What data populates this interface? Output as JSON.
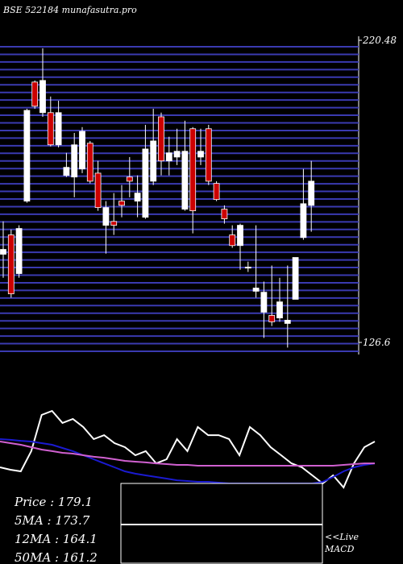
{
  "chart_data": [
    {
      "type": "candlestick",
      "title": "BSE 522184  munafasutra.pro",
      "ylim": [
        126.6,
        220.48
      ],
      "yticks": [
        126.6,
        220.48
      ],
      "up_color": "#ffffff",
      "down_color": "#cc0000",
      "grid_color": "#3a3ab0",
      "open": [
        154.0,
        160.0,
        148.0,
        170.5,
        207.5,
        198.0,
        198.0,
        188.0,
        178.5,
        178.0,
        180.5,
        188.5,
        179.2,
        163.0,
        164.2,
        170.5,
        178.0,
        170.5,
        165.5,
        176.7,
        196.7,
        183.0,
        184.2,
        168.0,
        193.0,
        184.2,
        193.0,
        176.0,
        168.0,
        160.0,
        156.7,
        149.7,
        142.5,
        136.0,
        135.0,
        134.2,
        132.5,
        140.0,
        159.2,
        169.2
      ],
      "high": [
        164.2,
        161.7,
        163.0,
        199.2,
        208.0,
        218.0,
        203.0,
        201.7,
        185.5,
        191.7,
        193.5,
        189.2,
        183.0,
        170.5,
        173.0,
        175.5,
        184.2,
        178.5,
        194.2,
        199.2,
        198.0,
        190.5,
        193.0,
        195.5,
        193.5,
        193.0,
        194.2,
        176.7,
        169.2,
        163.0,
        163.5,
        151.7,
        163.0,
        145.5,
        150.5,
        146.7,
        150.5,
        153.0,
        180.5,
        183.0
      ],
      "low": [
        146.7,
        140.5,
        146.7,
        170.0,
        199.2,
        196.7,
        187.5,
        187.2,
        178.0,
        171.7,
        179.2,
        176.0,
        167.5,
        154.2,
        160.0,
        165.5,
        171.7,
        165.5,
        165.0,
        175.5,
        178.5,
        178.5,
        181.7,
        167.5,
        160.5,
        181.7,
        175.5,
        170.5,
        163.5,
        156.0,
        149.2,
        148.5,
        140.5,
        128.0,
        131.7,
        133.0,
        125.0,
        140.0,
        158.5,
        161.0
      ],
      "close": [
        155.5,
        141.7,
        162.0,
        198.7,
        200.0,
        208.0,
        188.0,
        198.0,
        181.0,
        188.0,
        192.2,
        176.7,
        168.5,
        168.5,
        163.0,
        169.2,
        176.7,
        173.0,
        186.7,
        189.2,
        183.0,
        185.5,
        186.0,
        186.0,
        167.5,
        186.0,
        176.7,
        171.0,
        165.0,
        156.7,
        163.0,
        150.0,
        143.5,
        142.2,
        133.0,
        139.2,
        133.5,
        153.0,
        169.7,
        176.7
      ]
    },
    {
      "type": "line",
      "ylim": [
        0,
        100
      ],
      "series": [
        {
          "color": "#ffffff",
          "values": [
            28.6,
            26.4,
            25,
            42.9,
            75,
            78.6,
            67.9,
            71.4,
            64.3,
            53.6,
            57.1,
            50,
            46.4,
            39.3,
            42.9,
            32.1,
            35.7,
            53.6,
            42.9,
            64.3,
            57.1,
            57.1,
            53.6,
            39.3,
            64.3,
            57.1,
            46.4,
            39.3,
            32.1,
            28.6,
            21.4,
            14.3,
            21.4,
            10.7,
            32.1,
            46.4,
            51.4
          ]
        },
        {
          "color": "#1a1ad0",
          "values": [
            53.6,
            52.9,
            52.1,
            51.4,
            50,
            48.6,
            45.7,
            42.9,
            39.3,
            35.7,
            32.1,
            28.6,
            25,
            22.9,
            21.4,
            20,
            18.6,
            17.1,
            16.4,
            15.7,
            15.7,
            15,
            14.3,
            14.3,
            14.3,
            14.3,
            14.3,
            14.3,
            14.3,
            14.3,
            14.3,
            15.7,
            20,
            25,
            28.6,
            30.7,
            32.1
          ]
        },
        {
          "color": "#d060d0",
          "values": [
            51.4,
            50,
            48.6,
            46.4,
            44.3,
            42.9,
            41.4,
            40.7,
            39.3,
            37.9,
            37.1,
            35.7,
            34.3,
            33.6,
            32.9,
            32.1,
            31.4,
            30.7,
            30.7,
            30,
            30,
            30,
            30,
            30,
            30,
            30,
            30,
            30,
            30,
            30,
            30,
            30,
            30,
            30.7,
            31.4,
            32.1,
            32.1
          ]
        }
      ],
      "legend": [
        "Price   : 179.1",
        "5MA : 173.7",
        "12MA : 164.1",
        "50MA : 161.2"
      ],
      "live": "<<Live",
      "macd": "MACD"
    }
  ]
}
